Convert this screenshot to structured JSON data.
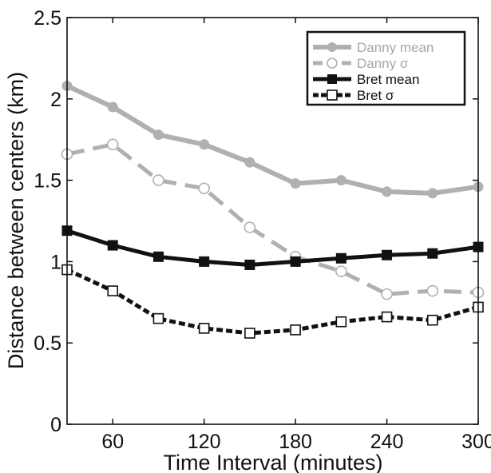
{
  "chart_data": {
    "type": "line",
    "title": "",
    "xlabel": "Time Interval (minutes)",
    "ylabel": "Distance between centers (km)",
    "xlim": [
      30,
      300
    ],
    "ylim": [
      0,
      2.5
    ],
    "xticks": [
      60,
      120,
      180,
      240,
      300
    ],
    "xtick_labels": [
      "60",
      "120",
      "180",
      "240",
      "300"
    ],
    "yticks": [
      0,
      0.5,
      1,
      1.5,
      2,
      2.5
    ],
    "ytick_labels": [
      "0",
      "0.5",
      "1",
      "1.5",
      "2",
      "2.5"
    ],
    "grid": false,
    "legend_position": "top-right",
    "x": [
      30,
      60,
      90,
      120,
      150,
      180,
      210,
      240,
      270,
      300
    ],
    "series": [
      {
        "name": "Danny mean",
        "values": [
          2.08,
          1.95,
          1.78,
          1.72,
          1.61,
          1.48,
          1.5,
          1.43,
          1.42,
          1.46
        ],
        "color": "#b0b0b0",
        "line": "solid",
        "marker": "filled-circle"
      },
      {
        "name": "Danny σ",
        "values": [
          1.66,
          1.72,
          1.5,
          1.45,
          1.21,
          1.03,
          0.94,
          0.8,
          0.82,
          0.81
        ],
        "color": "#b0b0b0",
        "line": "dashed",
        "marker": "open-circle"
      },
      {
        "name": "Bret mean",
        "values": [
          1.19,
          1.1,
          1.03,
          1.0,
          0.98,
          1.0,
          1.02,
          1.04,
          1.05,
          1.09
        ],
        "color": "#111111",
        "line": "solid",
        "marker": "filled-square"
      },
      {
        "name": "Bret σ",
        "values": [
          0.95,
          0.82,
          0.65,
          0.59,
          0.56,
          0.58,
          0.63,
          0.66,
          0.64,
          0.72
        ],
        "color": "#111111",
        "line": "dotted",
        "marker": "open-square"
      }
    ]
  }
}
